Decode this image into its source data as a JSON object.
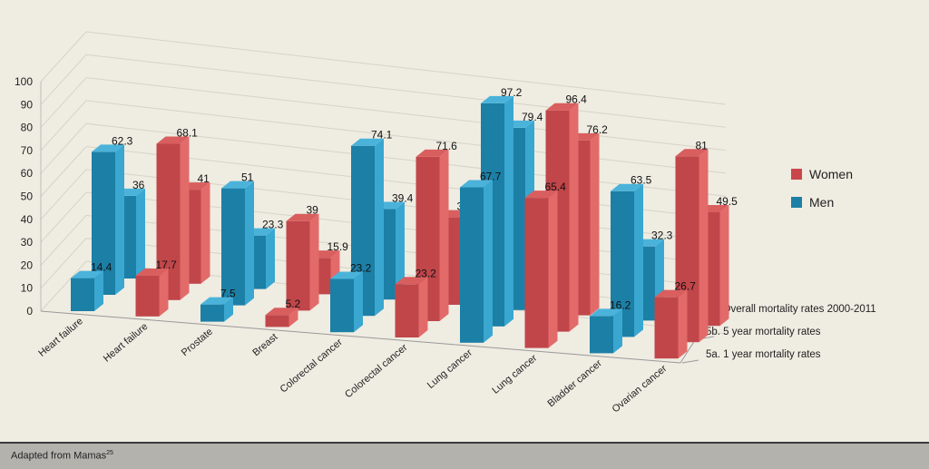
{
  "chart_data": {
    "type": "bar",
    "subtype": "3d-grouped",
    "categories": [
      "Heart failure",
      "Heart failure",
      "Prostate",
      "Breast",
      "Colorectal cancer",
      "Colorectal cancer",
      "Lung cancer",
      "Lung cancer",
      "Bladder cancer",
      "Ovarian cancer"
    ],
    "category_group": [
      "Men",
      "Women",
      "Men",
      "Women",
      "Men",
      "Women",
      "Men",
      "Women",
      "Men",
      "Women"
    ],
    "series": [
      {
        "name": "5a. 1 year mortality rates",
        "values": [
          14.4,
          17.7,
          7.5,
          5.2,
          23.2,
          23.2,
          67.7,
          65.4,
          16.2,
          26.7
        ]
      },
      {
        "name": "5b. 5 year mortality rates",
        "values": [
          62.3,
          68.1,
          51,
          39,
          74.1,
          71.6,
          97.2,
          96.4,
          63.5,
          81
        ]
      },
      {
        "name": "5c. Overall mortality rates 2000-2011",
        "values": [
          36,
          41,
          23.3,
          15.9,
          39.4,
          38.1,
          79.4,
          76.2,
          32.3,
          49.5
        ]
      }
    ],
    "yticks": [
      0,
      10,
      20,
      30,
      40,
      50,
      60,
      70,
      80,
      90,
      100
    ],
    "ylim": [
      0,
      100
    ],
    "grid": true,
    "legend": {
      "position": "right",
      "entries": [
        {
          "label": "Women",
          "color": "#c9474b"
        },
        {
          "label": "Men",
          "color": "#1c7fa6"
        }
      ]
    }
  },
  "footer": {
    "text": "Adapted from Mamas",
    "sup": "25"
  }
}
